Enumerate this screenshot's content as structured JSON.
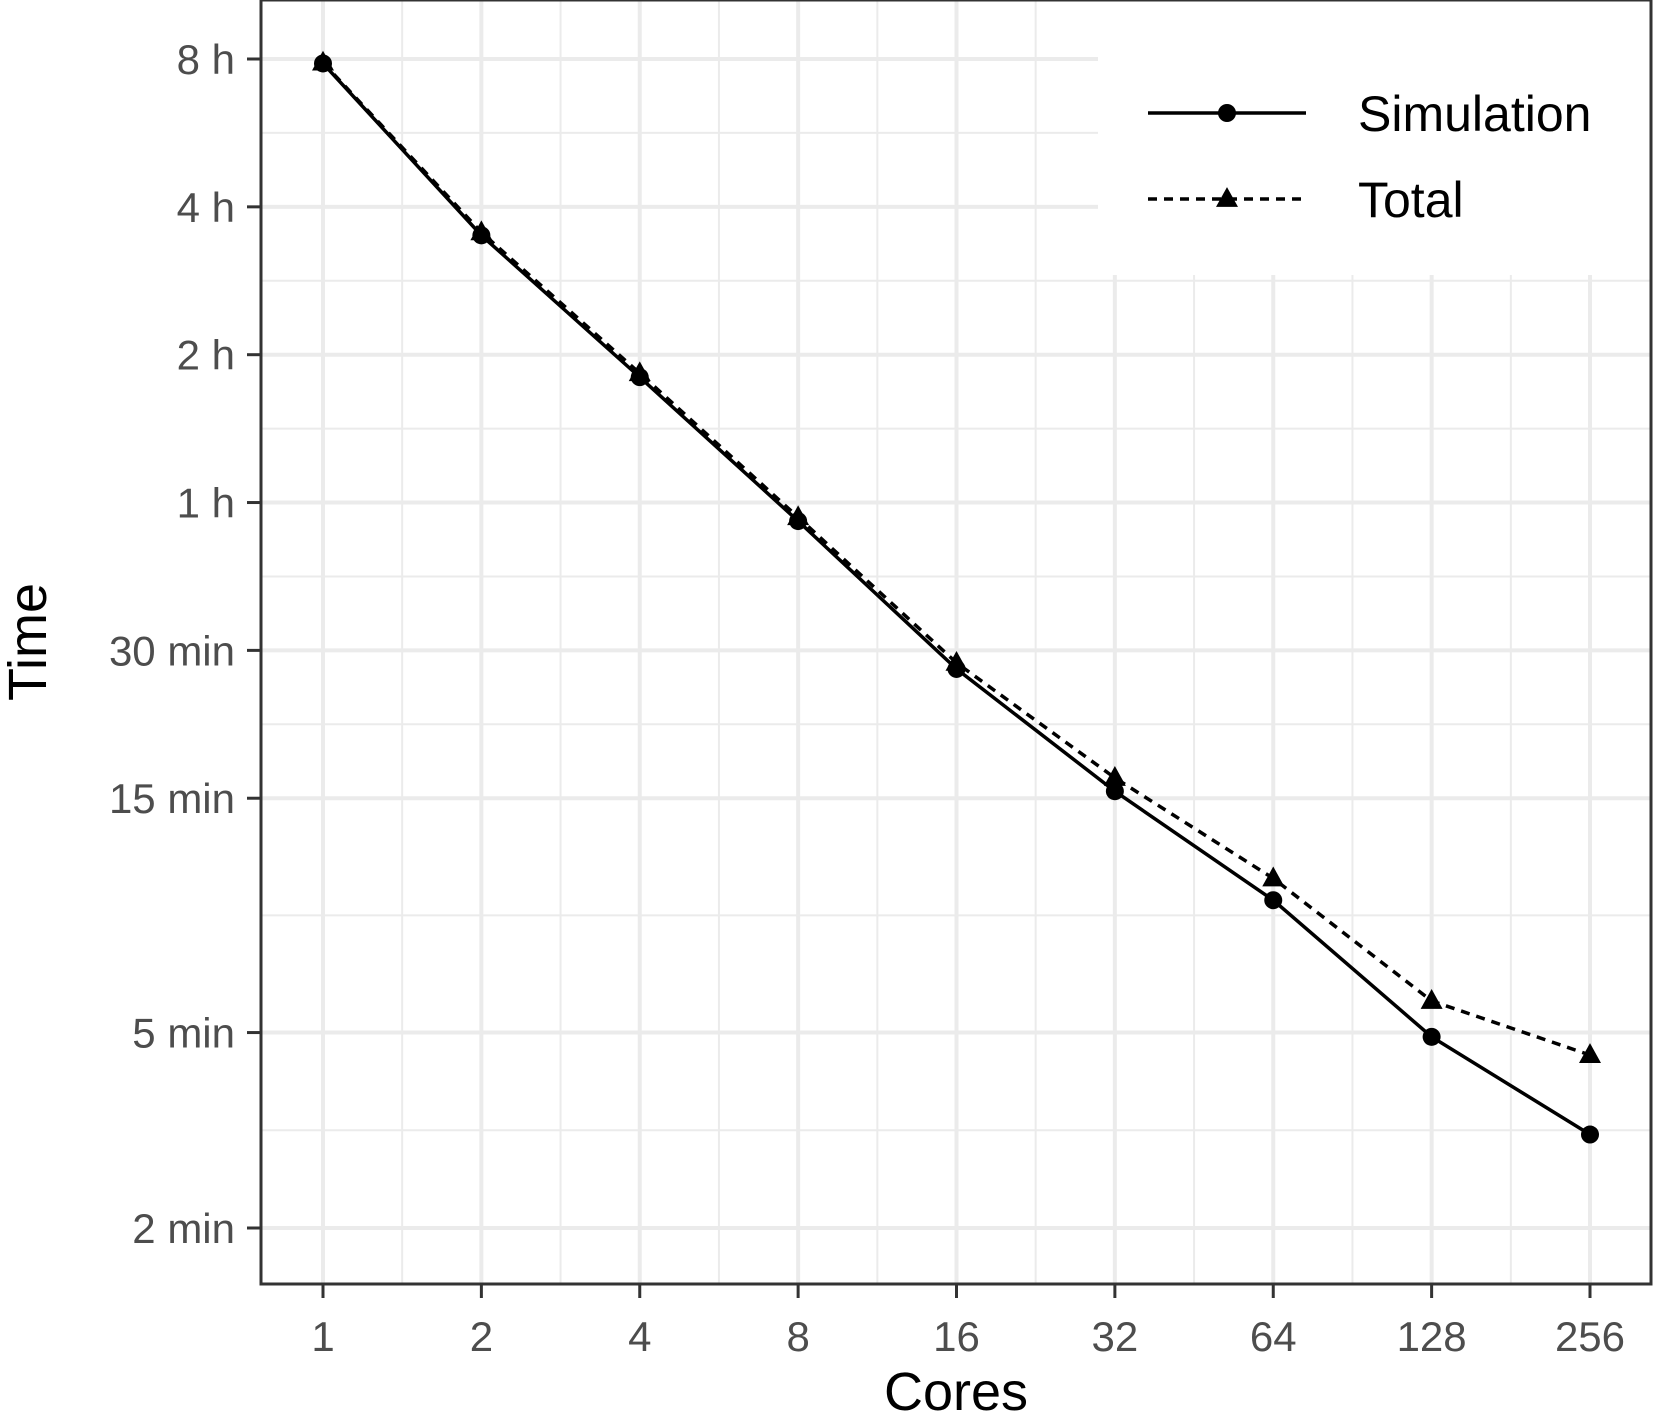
{
  "chart_data": {
    "type": "line",
    "xlabel": "Cores",
    "ylabel": "Time",
    "x_scale": "log2",
    "y_scale": "log",
    "y_unit": "minutes",
    "x": [
      1,
      2,
      4,
      8,
      16,
      32,
      64,
      128,
      256
    ],
    "x_tick_labels": [
      "1",
      "2",
      "4",
      "8",
      "16",
      "32",
      "64",
      "128",
      "256"
    ],
    "y_ticks": [
      {
        "value": 2,
        "label": "2 min"
      },
      {
        "value": 5,
        "label": "5 min"
      },
      {
        "value": 15,
        "label": "15 min"
      },
      {
        "value": 30,
        "label": "30 min"
      },
      {
        "value": 60,
        "label": "1 h"
      },
      {
        "value": 120,
        "label": "2 h"
      },
      {
        "value": 240,
        "label": "4 h"
      },
      {
        "value": 480,
        "label": "8 h"
      }
    ],
    "ylim": [
      1.6,
      560
    ],
    "series": [
      {
        "name": "Simulation",
        "line": "solid",
        "marker": "circle",
        "values": [
          470,
          210,
          108,
          55,
          27.5,
          15.5,
          9.3,
          4.9,
          3.1
        ]
      },
      {
        "name": "Total",
        "line": "dashed",
        "marker": "triangle",
        "values": [
          472,
          213,
          110,
          56,
          28.3,
          16.5,
          10.3,
          5.8,
          4.5
        ]
      }
    ],
    "grid": true,
    "legend_position": "top-right",
    "colors": {
      "line": "#000000",
      "grid": "#ebebeb",
      "panel_border": "#333333",
      "tick_text": "#4d4d4d"
    }
  }
}
